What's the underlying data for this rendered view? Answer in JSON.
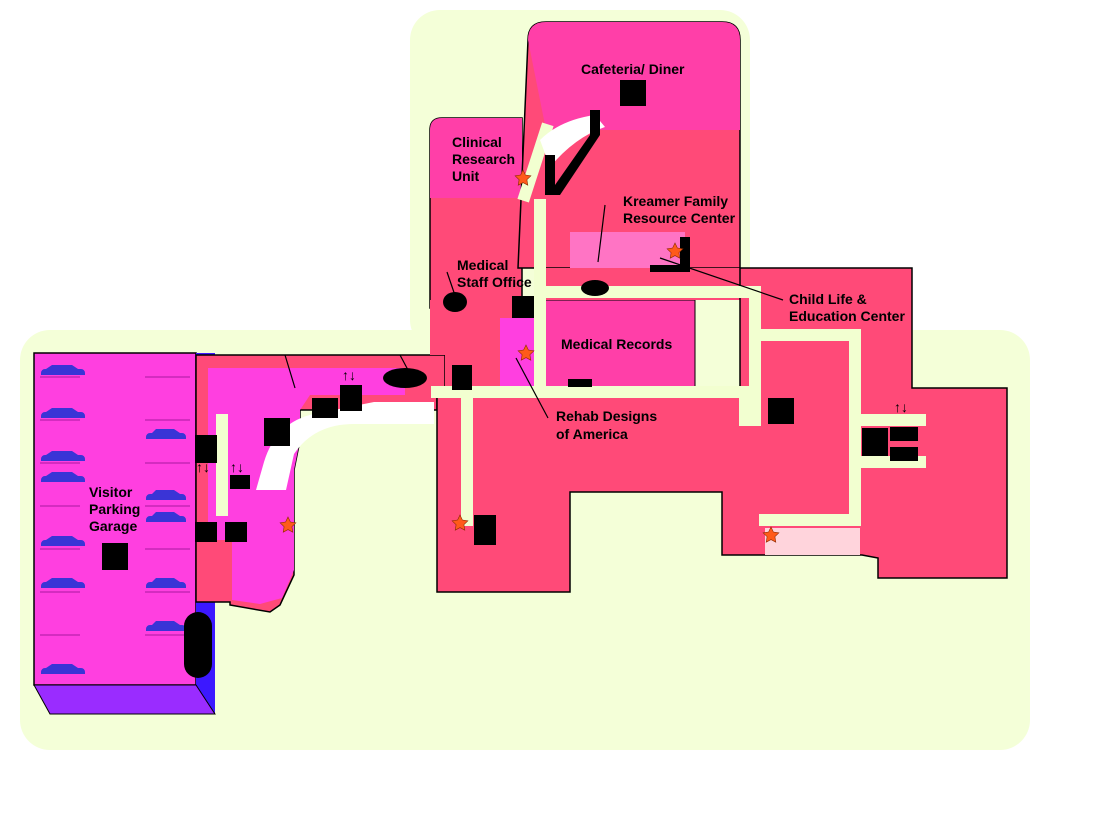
{
  "map": {
    "labels": {
      "cafeteria": "Cafeteria/ Diner",
      "clinical_research": [
        "Clinical",
        "Research",
        "Unit"
      ],
      "kreamer": [
        "Kreamer Family",
        "Resource Center"
      ],
      "medical_staff": [
        "Medical",
        "Staff Office"
      ],
      "child_life": [
        "Child Life &",
        "Education Center"
      ],
      "medical_records": "Medical Records",
      "rehab": [
        "Rehab Designs",
        "of America"
      ],
      "visitor_parking": [
        "Visitor",
        "Parking",
        "Garage"
      ]
    },
    "elevator_symbol": "↑↓",
    "colors": {
      "building_red": "#ff4a78",
      "magenta_room": "#ff3fe0",
      "pink_room": "#ff3fa8",
      "light_pink": "#ff74c4",
      "corridor": "#f2ffd0",
      "garage_purple": "#9a2cff",
      "car_blue": "#3a34d6",
      "star_orange": "#ff5a1a"
    },
    "icons": [
      "car-icon",
      "elevator-icon",
      "star-icon"
    ]
  }
}
